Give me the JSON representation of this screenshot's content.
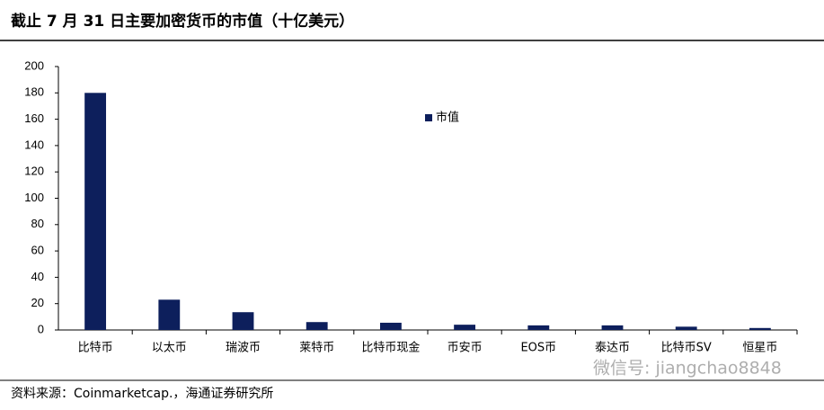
{
  "chart_data": {
    "type": "bar",
    "title": "截止 7 月 31 日主要加密货币的市值（十亿美元）",
    "source": "资料来源：Coinmarketcap.，海通证券研究所",
    "watermark": "微信号: jiangchao8848",
    "categories": [
      "比特币",
      "以太币",
      "瑞波币",
      "莱特币",
      "比特币现金",
      "币安币",
      "EOS币",
      "泰达币",
      "比特币SV",
      "恒星币"
    ],
    "series": [
      {
        "name": "市值",
        "color": "#0d1f5c",
        "values": [
          180,
          23,
          13.5,
          6,
          5.5,
          4,
          3.5,
          3.5,
          2.5,
          1.5
        ]
      }
    ],
    "ylim": [
      0,
      200
    ],
    "yticks": [
      0,
      20,
      40,
      60,
      80,
      100,
      120,
      140,
      160,
      180,
      200
    ],
    "grid": false,
    "legend": "center"
  }
}
